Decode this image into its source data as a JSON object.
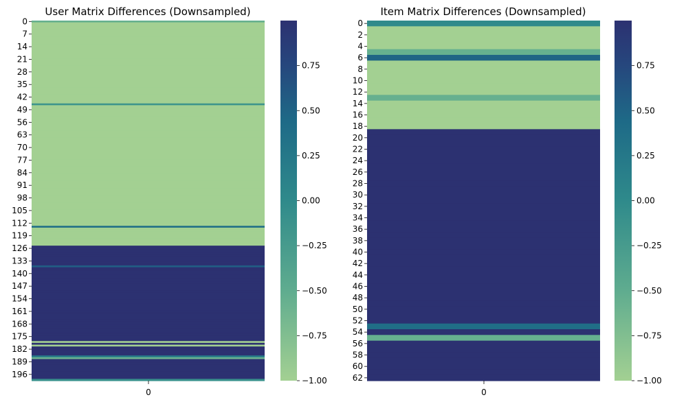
{
  "chart_data": [
    {
      "type": "heatmap",
      "title": "User Matrix Differences (Downsampled)",
      "xlabel": "",
      "ylabel": "",
      "x_tick_labels": [
        "0"
      ],
      "y_tick_labels": [
        "0",
        "7",
        "14",
        "21",
        "28",
        "35",
        "42",
        "49",
        "56",
        "63",
        "70",
        "77",
        "84",
        "91",
        "98",
        "105",
        "112",
        "119",
        "126",
        "133",
        "140",
        "147",
        "154",
        "161",
        "168",
        "175",
        "182",
        "189",
        "196"
      ],
      "n_rows": 200,
      "default_value": -1.0,
      "cells": [
        {
          "row": 0,
          "value": -0.55
        },
        {
          "row": 46,
          "value": -0.15
        },
        {
          "row": 114,
          "value": 0.4
        },
        {
          "row": 125,
          "value": 1.0
        },
        {
          "row": 126,
          "value": 1.0
        },
        {
          "row": 127,
          "value": 1.0
        },
        {
          "row": 128,
          "value": 1.0
        },
        {
          "row": 129,
          "value": 1.0
        },
        {
          "row": 130,
          "value": 1.0
        },
        {
          "row": 131,
          "value": 1.0
        },
        {
          "row": 132,
          "value": 1.0
        },
        {
          "row": 133,
          "value": 1.0
        },
        {
          "row": 134,
          "value": 1.0
        },
        {
          "row": 135,
          "value": 1.0
        },
        {
          "row": 136,
          "value": 0.55
        },
        {
          "row": 137,
          "value": 1.0
        },
        {
          "row": 138,
          "value": 1.0
        },
        {
          "row": 139,
          "value": 1.0
        },
        {
          "row": 140,
          "value": 1.0
        },
        {
          "row": 141,
          "value": 1.0
        },
        {
          "row": 142,
          "value": 1.0
        },
        {
          "row": 143,
          "value": 1.0
        },
        {
          "row": 144,
          "value": 1.0
        },
        {
          "row": 145,
          "value": 1.0
        },
        {
          "row": 146,
          "value": 1.0
        },
        {
          "row": 147,
          "value": 1.0
        },
        {
          "row": 148,
          "value": 1.0
        },
        {
          "row": 149,
          "value": 1.0
        },
        {
          "row": 150,
          "value": 1.0
        },
        {
          "row": 151,
          "value": 1.0
        },
        {
          "row": 152,
          "value": 1.0
        },
        {
          "row": 153,
          "value": 1.0
        },
        {
          "row": 154,
          "value": 1.0
        },
        {
          "row": 155,
          "value": 1.0
        },
        {
          "row": 156,
          "value": 1.0
        },
        {
          "row": 157,
          "value": 1.0
        },
        {
          "row": 158,
          "value": 1.0
        },
        {
          "row": 159,
          "value": 1.0
        },
        {
          "row": 160,
          "value": 1.0
        },
        {
          "row": 161,
          "value": 1.0
        },
        {
          "row": 162,
          "value": 1.0
        },
        {
          "row": 163,
          "value": 1.0
        },
        {
          "row": 164,
          "value": 1.0
        },
        {
          "row": 165,
          "value": 1.0
        },
        {
          "row": 166,
          "value": 1.0
        },
        {
          "row": 167,
          "value": 1.0
        },
        {
          "row": 168,
          "value": 1.0
        },
        {
          "row": 169,
          "value": 1.0
        },
        {
          "row": 170,
          "value": 1.0
        },
        {
          "row": 171,
          "value": 1.0
        },
        {
          "row": 172,
          "value": 1.0
        },
        {
          "row": 173,
          "value": 1.0
        },
        {
          "row": 174,
          "value": 1.0
        },
        {
          "row": 175,
          "value": 1.0
        },
        {
          "row": 176,
          "value": 1.0
        },
        {
          "row": 177,
          "value": 1.0
        },
        {
          "row": 179,
          "value": 1.0
        },
        {
          "row": 181,
          "value": 1.0
        },
        {
          "row": 182,
          "value": 1.0
        },
        {
          "row": 183,
          "value": 1.0
        },
        {
          "row": 184,
          "value": 1.0
        },
        {
          "row": 185,
          "value": 1.0
        },
        {
          "row": 186,
          "value": 0.2
        },
        {
          "row": 187,
          "value": -0.6
        },
        {
          "row": 188,
          "value": 1.0
        },
        {
          "row": 189,
          "value": 1.0
        },
        {
          "row": 190,
          "value": 1.0
        },
        {
          "row": 191,
          "value": 1.0
        },
        {
          "row": 192,
          "value": 1.0
        },
        {
          "row": 193,
          "value": 1.0
        },
        {
          "row": 194,
          "value": 1.0
        },
        {
          "row": 195,
          "value": 1.0
        },
        {
          "row": 196,
          "value": 1.0
        },
        {
          "row": 197,
          "value": 1.0
        },
        {
          "row": 198,
          "value": 1.0
        },
        {
          "row": 199,
          "value": -0.1
        }
      ],
      "colorbar": {
        "range": [
          -1.0,
          1.0
        ],
        "ticks": [
          "0.75",
          "0.50",
          "0.25",
          "0.00",
          "−0.25",
          "−0.50",
          "−0.75",
          "−1.00"
        ]
      }
    },
    {
      "type": "heatmap",
      "title": "Item Matrix Differences (Downsampled)",
      "xlabel": "",
      "ylabel": "",
      "x_tick_labels": [
        "0"
      ],
      "y_tick_labels": [
        "0",
        "2",
        "4",
        "6",
        "8",
        "10",
        "12",
        "14",
        "16",
        "18",
        "20",
        "22",
        "24",
        "26",
        "28",
        "30",
        "32",
        "34",
        "36",
        "38",
        "40",
        "42",
        "44",
        "46",
        "48",
        "50",
        "52",
        "54",
        "56",
        "58",
        "60",
        "62"
      ],
      "n_rows": 63,
      "values": [
        0.0,
        -1.0,
        -1.0,
        -1.0,
        -1.0,
        -0.55,
        0.5,
        -1.0,
        -1.0,
        -1.0,
        -1.0,
        -1.0,
        -1.0,
        -0.55,
        -1.0,
        -1.0,
        -1.0,
        -1.0,
        -1.0,
        1.0,
        1.0,
        1.0,
        1.0,
        1.0,
        1.0,
        1.0,
        1.0,
        1.0,
        1.0,
        1.0,
        1.0,
        1.0,
        1.0,
        1.0,
        1.0,
        1.0,
        1.0,
        1.0,
        1.0,
        1.0,
        1.0,
        1.0,
        1.0,
        1.0,
        1.0,
        1.0,
        1.0,
        1.0,
        1.0,
        1.0,
        1.0,
        1.0,
        1.0,
        0.4,
        1.0,
        -0.55,
        1.0,
        1.0,
        1.0,
        1.0,
        1.0,
        1.0,
        1.0
      ],
      "colorbar": {
        "range": [
          -1.0,
          1.0
        ],
        "ticks": [
          "0.75",
          "0.50",
          "0.25",
          "0.00",
          "−0.25",
          "−0.50",
          "−0.75",
          "−1.00"
        ]
      }
    }
  ]
}
